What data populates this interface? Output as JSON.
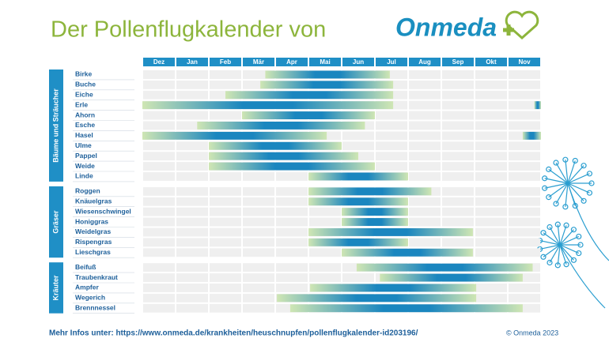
{
  "chart_data": {
    "type": "gantt",
    "title": "Der Pollenflugkalender von",
    "brand": "Onmeda",
    "months": [
      "Dez",
      "Jan",
      "Feb",
      "Mär",
      "Apr",
      "Mai",
      "Jun",
      "Jul",
      "Aug",
      "Sep",
      "Okt",
      "Nov"
    ],
    "xlim": [
      0,
      12
    ],
    "colors": {
      "header": "#1f8fc6",
      "group": "#1f8fc6",
      "label": "#1d5f9a",
      "bar_edge": "#cfe6b4",
      "bar_core": "#1a86bf"
    },
    "groups": [
      {
        "name": "Bäume und Sträucher",
        "plants": [
          {
            "name": "Birke",
            "periods": [
              [
                3.7,
                7.45
              ]
            ]
          },
          {
            "name": "Buche",
            "periods": [
              [
                3.55,
                7.55
              ]
            ]
          },
          {
            "name": "Eiche",
            "periods": [
              [
                2.5,
                7.55
              ]
            ]
          },
          {
            "name": "Erle",
            "periods": [
              [
                0,
                7.55
              ],
              [
                11.8,
                12
              ]
            ]
          },
          {
            "name": "Ahorn",
            "periods": [
              [
                3,
                7
              ]
            ]
          },
          {
            "name": "Esche",
            "periods": [
              [
                1.65,
                6.7
              ]
            ]
          },
          {
            "name": "Hasel",
            "periods": [
              [
                0,
                5.55
              ],
              [
                11.45,
                12
              ]
            ]
          },
          {
            "name": "Ulme",
            "periods": [
              [
                2,
                6
              ]
            ]
          },
          {
            "name": "Pappel",
            "periods": [
              [
                2,
                6.5
              ]
            ]
          },
          {
            "name": "Weide",
            "periods": [
              [
                2,
                7
              ]
            ]
          },
          {
            "name": "Linde",
            "periods": [
              [
                5,
                8
              ]
            ]
          }
        ]
      },
      {
        "name": "Gräser",
        "plants": [
          {
            "name": "Roggen",
            "periods": [
              [
                5,
                8.7
              ]
            ]
          },
          {
            "name": "Knäuelgras",
            "periods": [
              [
                5,
                8
              ]
            ]
          },
          {
            "name": "Wiesenschwingel",
            "periods": [
              [
                6,
                8
              ]
            ]
          },
          {
            "name": "Honiggras",
            "periods": [
              [
                6,
                8
              ]
            ]
          },
          {
            "name": "Weidelgras",
            "periods": [
              [
                5,
                9.95
              ]
            ]
          },
          {
            "name": "Rispengras",
            "periods": [
              [
                5,
                8
              ]
            ]
          },
          {
            "name": "Lieschgras",
            "periods": [
              [
                6,
                9.95
              ]
            ]
          }
        ]
      },
      {
        "name": "Kräuter",
        "plants": [
          {
            "name": "Beifuß",
            "periods": [
              [
                6.45,
                11.75
              ]
            ]
          },
          {
            "name": "Traubenkraut",
            "periods": [
              [
                7.15,
                11.45
              ]
            ]
          },
          {
            "name": "Ampfer",
            "periods": [
              [
                5.05,
                10.05
              ]
            ]
          },
          {
            "name": "Wegerich",
            "periods": [
              [
                4.05,
                10.05
              ]
            ]
          },
          {
            "name": "Brennnessel",
            "periods": [
              [
                4.45,
                11.45
              ]
            ]
          }
        ]
      }
    ],
    "footer": "Mehr Infos unter: https://www.onmeda.de/krankheiten/heuschnupfen/pollenflugkalender-id203196/",
    "copyright": "© Onmeda 2023"
  }
}
